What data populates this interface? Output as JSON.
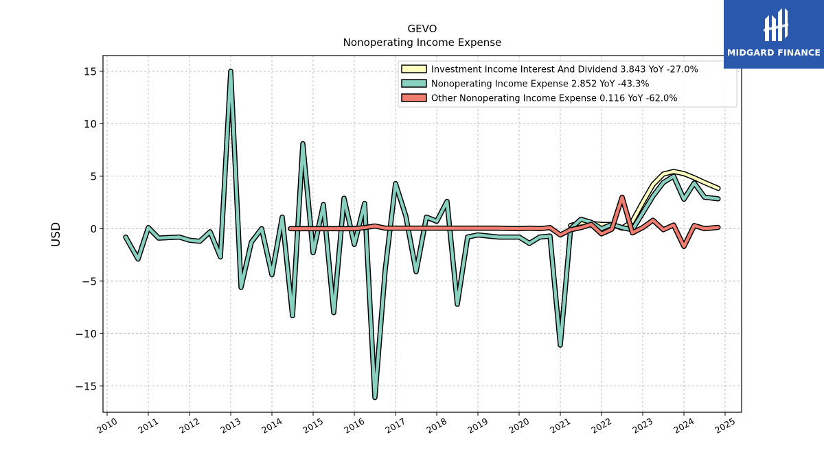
{
  "chart_data": {
    "type": "line",
    "title": "GEVO",
    "subtitle": "Nonoperating Income Expense",
    "ylabel": "USD",
    "xlabel": "",
    "xlim": [
      2009.9,
      2025.4
    ],
    "ylim": [
      -17.5,
      16.5
    ],
    "x_ticks": [
      "2010",
      "2011",
      "2012",
      "2013",
      "2014",
      "2015",
      "2016",
      "2017",
      "2018",
      "2019",
      "2020",
      "2021",
      "2022",
      "2023",
      "2024",
      "2025"
    ],
    "y_ticks": [
      {
        "value": 15,
        "label": "15"
      },
      {
        "value": 10,
        "label": "10"
      },
      {
        "value": 5,
        "label": "5"
      },
      {
        "value": 0,
        "label": "0"
      },
      {
        "value": -5,
        "label": "−5"
      },
      {
        "value": -10,
        "label": "−10"
      },
      {
        "value": -15,
        "label": "−15"
      }
    ],
    "grid": true,
    "legend_position": "top-right",
    "series": [
      {
        "name": "Investment Income Interest And Dividend",
        "legend_label": "Investment Income Interest And Dividend  3.843 YoY -27.0%",
        "color": "#ffffc0",
        "points": [
          [
            2021.25,
            0.3
          ],
          [
            2021.5,
            0.55
          ],
          [
            2021.75,
            0.5
          ],
          [
            2022.0,
            0.4
          ],
          [
            2022.25,
            0.4
          ],
          [
            2022.5,
            0.05
          ],
          [
            2022.75,
            0.7
          ],
          [
            2023.0,
            2.5
          ],
          [
            2023.25,
            4.2
          ],
          [
            2023.5,
            5.2
          ],
          [
            2023.75,
            5.45
          ],
          [
            2024.0,
            5.25
          ],
          [
            2024.25,
            4.85
          ],
          [
            2024.5,
            4.4
          ],
          [
            2024.83,
            3.84
          ]
        ]
      },
      {
        "name": "Nonoperating Income Expense",
        "legend_label": "Nonoperating Income Expense  2.852 YoY -43.3%",
        "color": "#88d0c0",
        "points": [
          [
            2010.45,
            -0.8
          ],
          [
            2010.75,
            -2.9
          ],
          [
            2011.0,
            0.1
          ],
          [
            2011.25,
            -0.9
          ],
          [
            2011.75,
            -0.8
          ],
          [
            2012.0,
            -1.1
          ],
          [
            2012.25,
            -1.2
          ],
          [
            2012.5,
            -0.3
          ],
          [
            2012.75,
            -2.7
          ],
          [
            2013.0,
            15.0
          ],
          [
            2013.25,
            -5.6
          ],
          [
            2013.5,
            -1.3
          ],
          [
            2013.75,
            0.0
          ],
          [
            2014.0,
            -4.4
          ],
          [
            2014.25,
            1.1
          ],
          [
            2014.5,
            -8.3
          ],
          [
            2014.75,
            8.1
          ],
          [
            2015.0,
            -2.3
          ],
          [
            2015.25,
            2.3
          ],
          [
            2015.5,
            -8.0
          ],
          [
            2015.75,
            2.9
          ],
          [
            2016.0,
            -1.5
          ],
          [
            2016.25,
            2.4
          ],
          [
            2016.5,
            -16.1
          ],
          [
            2016.75,
            -3.9
          ],
          [
            2017.0,
            4.3
          ],
          [
            2017.25,
            1.2
          ],
          [
            2017.5,
            -4.1
          ],
          [
            2017.75,
            1.1
          ],
          [
            2018.0,
            0.7
          ],
          [
            2018.25,
            2.6
          ],
          [
            2018.5,
            -7.2
          ],
          [
            2018.75,
            -0.8
          ],
          [
            2019.0,
            -0.6
          ],
          [
            2019.5,
            -0.8
          ],
          [
            2020.0,
            -0.8
          ],
          [
            2020.25,
            -1.4
          ],
          [
            2020.5,
            -0.8
          ],
          [
            2020.75,
            -0.7
          ],
          [
            2021.0,
            -11.1
          ],
          [
            2021.25,
            0.0
          ],
          [
            2021.5,
            0.9
          ],
          [
            2021.75,
            0.6
          ],
          [
            2022.0,
            0.0
          ],
          [
            2022.25,
            0.4
          ],
          [
            2022.5,
            0.1
          ],
          [
            2022.75,
            -0.1
          ],
          [
            2023.0,
            1.5
          ],
          [
            2023.25,
            3.1
          ],
          [
            2023.5,
            4.4
          ],
          [
            2023.75,
            5.0
          ],
          [
            2024.0,
            2.8
          ],
          [
            2024.25,
            4.35
          ],
          [
            2024.5,
            3.0
          ],
          [
            2024.83,
            2.85
          ]
        ]
      },
      {
        "name": "Other Nonoperating Income Expense",
        "legend_label": "Other Nonoperating Income Expense  0.116 YoY -62.0%",
        "color": "#f07e70",
        "points": [
          [
            2014.45,
            0.0
          ],
          [
            2016.0,
            0.0
          ],
          [
            2016.25,
            0.1
          ],
          [
            2016.5,
            0.25
          ],
          [
            2016.75,
            0.05
          ],
          [
            2017.0,
            0.05
          ],
          [
            2019.0,
            0.05
          ],
          [
            2019.5,
            0.05
          ],
          [
            2020.0,
            0.0
          ],
          [
            2020.25,
            0.05
          ],
          [
            2020.5,
            0.0
          ],
          [
            2020.75,
            0.1
          ],
          [
            2021.0,
            -0.6
          ],
          [
            2021.25,
            -0.1
          ],
          [
            2021.5,
            0.1
          ],
          [
            2021.75,
            0.4
          ],
          [
            2022.0,
            -0.5
          ],
          [
            2022.25,
            -0.05
          ],
          [
            2022.5,
            3.0
          ],
          [
            2022.75,
            -0.4
          ],
          [
            2023.0,
            0.1
          ],
          [
            2023.25,
            0.8
          ],
          [
            2023.5,
            -0.1
          ],
          [
            2023.75,
            0.35
          ],
          [
            2024.0,
            -1.7
          ],
          [
            2024.25,
            0.3
          ],
          [
            2024.5,
            0.0
          ],
          [
            2024.83,
            0.12
          ]
        ]
      }
    ]
  },
  "logo": {
    "text": "MIDGARD FINANCE",
    "color": "#2a58ad"
  }
}
